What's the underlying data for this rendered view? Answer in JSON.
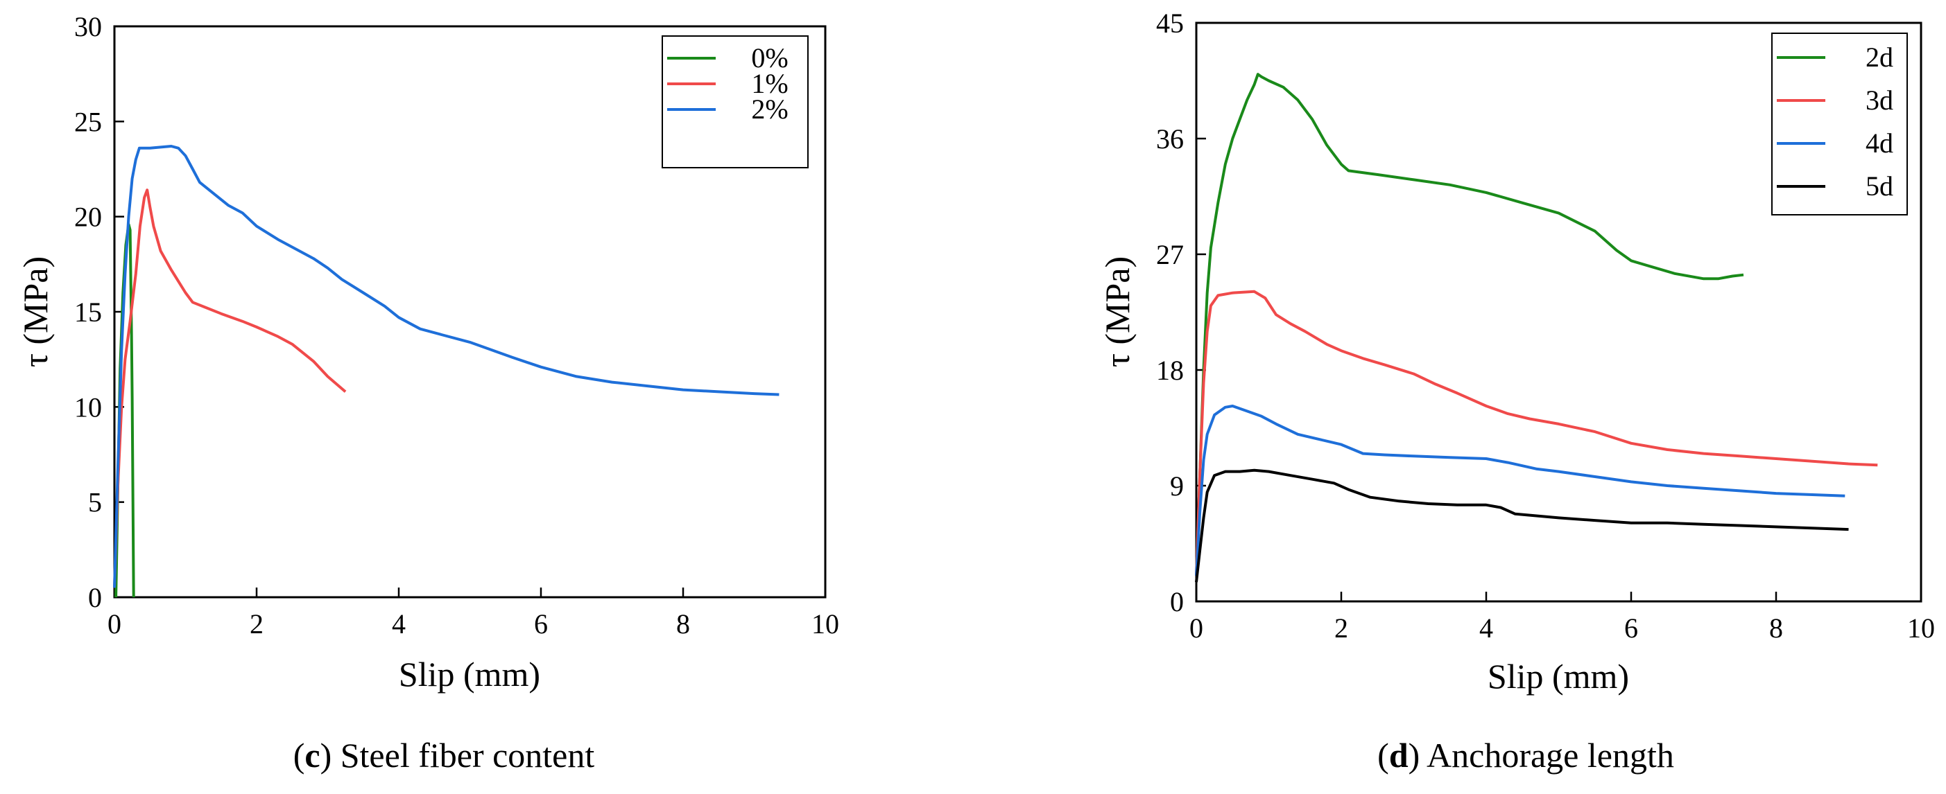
{
  "chart_data": [
    {
      "type": "line",
      "panel_letter": "c",
      "caption_text": " Steel fiber content",
      "xlabel": "Slip (mm)",
      "ylabel": "τ (MPa)",
      "xlim": [
        0,
        10
      ],
      "ylim": [
        0,
        30
      ],
      "xticks": [
        0,
        2,
        4,
        6,
        8,
        10
      ],
      "yticks": [
        0,
        5,
        10,
        15,
        20,
        25,
        30
      ],
      "legend_position": "top-right",
      "series": [
        {
          "name": "0%",
          "color": "#1a8a1a",
          "points": [
            [
              0.02,
              0
            ],
            [
              0.05,
              6
            ],
            [
              0.08,
              12
            ],
            [
              0.12,
              16
            ],
            [
              0.16,
              18.5
            ],
            [
              0.2,
              19.6
            ],
            [
              0.22,
              19.3
            ],
            [
              0.24,
              14
            ],
            [
              0.25,
              10.5
            ],
            [
              0.26,
              5
            ],
            [
              0.27,
              0
            ]
          ]
        },
        {
          "name": "1%",
          "color": "#f04a4a",
          "points": [
            [
              0.0,
              0.5
            ],
            [
              0.05,
              6
            ],
            [
              0.1,
              10
            ],
            [
              0.15,
              12.5
            ],
            [
              0.22,
              14.5
            ],
            [
              0.3,
              17
            ],
            [
              0.36,
              19.5
            ],
            [
              0.42,
              21
            ],
            [
              0.46,
              21.4
            ],
            [
              0.5,
              20.5
            ],
            [
              0.55,
              19.5
            ],
            [
              0.65,
              18.2
            ],
            [
              0.8,
              17.2
            ],
            [
              1.0,
              16
            ],
            [
              1.1,
              15.5
            ],
            [
              1.3,
              15.2
            ],
            [
              1.5,
              14.9
            ],
            [
              1.8,
              14.5
            ],
            [
              2.0,
              14.2
            ],
            [
              2.3,
              13.7
            ],
            [
              2.5,
              13.3
            ],
            [
              2.8,
              12.4
            ],
            [
              3.0,
              11.6
            ],
            [
              3.25,
              10.8
            ]
          ]
        },
        {
          "name": "2%",
          "color": "#1e6fd9",
          "points": [
            [
              0.0,
              0.5
            ],
            [
              0.05,
              7
            ],
            [
              0.1,
              13
            ],
            [
              0.15,
              17
            ],
            [
              0.2,
              20
            ],
            [
              0.25,
              22
            ],
            [
              0.3,
              23
            ],
            [
              0.35,
              23.6
            ],
            [
              0.5,
              23.6
            ],
            [
              0.8,
              23.7
            ],
            [
              0.9,
              23.6
            ],
            [
              1.0,
              23.2
            ],
            [
              1.1,
              22.5
            ],
            [
              1.2,
              21.8
            ],
            [
              1.4,
              21.2
            ],
            [
              1.6,
              20.6
            ],
            [
              1.8,
              20.2
            ],
            [
              2.0,
              19.5
            ],
            [
              2.3,
              18.8
            ],
            [
              2.5,
              18.4
            ],
            [
              2.8,
              17.8
            ],
            [
              3.0,
              17.3
            ],
            [
              3.2,
              16.7
            ],
            [
              3.5,
              16.0
            ],
            [
              3.8,
              15.3
            ],
            [
              4.0,
              14.7
            ],
            [
              4.3,
              14.1
            ],
            [
              4.6,
              13.8
            ],
            [
              5.0,
              13.4
            ],
            [
              5.3,
              13.0
            ],
            [
              5.6,
              12.6
            ],
            [
              6.0,
              12.1
            ],
            [
              6.5,
              11.6
            ],
            [
              7.0,
              11.3
            ],
            [
              7.5,
              11.1
            ],
            [
              8.0,
              10.9
            ],
            [
              8.5,
              10.8
            ],
            [
              9.0,
              10.7
            ],
            [
              9.35,
              10.65
            ]
          ]
        }
      ]
    },
    {
      "type": "line",
      "panel_letter": "d",
      "caption_text": " Anchorage length",
      "xlabel": "Slip (mm)",
      "ylabel": "τ (MPa)",
      "xlim": [
        0,
        10
      ],
      "ylim": [
        0,
        45
      ],
      "xticks": [
        0,
        2,
        4,
        6,
        8,
        10
      ],
      "yticks": [
        0,
        9,
        18,
        27,
        36,
        45
      ],
      "legend_position": "top-right",
      "series": [
        {
          "name": "2d",
          "color": "#1a8a1a",
          "points": [
            [
              0.0,
              2
            ],
            [
              0.05,
              10
            ],
            [
              0.1,
              18
            ],
            [
              0.15,
              24
            ],
            [
              0.2,
              27.5
            ],
            [
              0.3,
              31
            ],
            [
              0.4,
              34
            ],
            [
              0.5,
              36
            ],
            [
              0.6,
              37.5
            ],
            [
              0.7,
              39
            ],
            [
              0.8,
              40.2
            ],
            [
              0.85,
              41
            ],
            [
              0.9,
              40.8
            ],
            [
              1.0,
              40.5
            ],
            [
              1.2,
              40.0
            ],
            [
              1.4,
              39.0
            ],
            [
              1.6,
              37.5
            ],
            [
              1.8,
              35.5
            ],
            [
              2.0,
              34
            ],
            [
              2.1,
              33.5
            ],
            [
              2.5,
              33.2
            ],
            [
              3.0,
              32.8
            ],
            [
              3.5,
              32.4
            ],
            [
              4.0,
              31.8
            ],
            [
              4.5,
              31.0
            ],
            [
              5.0,
              30.2
            ],
            [
              5.5,
              28.8
            ],
            [
              5.8,
              27.3
            ],
            [
              6.0,
              26.5
            ],
            [
              6.3,
              26.0
            ],
            [
              6.6,
              25.5
            ],
            [
              7.0,
              25.1
            ],
            [
              7.2,
              25.1
            ],
            [
              7.4,
              25.3
            ],
            [
              7.55,
              25.4
            ]
          ]
        },
        {
          "name": "3d",
          "color": "#f04a4a",
          "points": [
            [
              0.0,
              2
            ],
            [
              0.05,
              10
            ],
            [
              0.1,
              17
            ],
            [
              0.15,
              21
            ],
            [
              0.2,
              23
            ],
            [
              0.3,
              23.8
            ],
            [
              0.5,
              24.0
            ],
            [
              0.8,
              24.1
            ],
            [
              0.95,
              23.6
            ],
            [
              1.1,
              22.3
            ],
            [
              1.3,
              21.6
            ],
            [
              1.5,
              21.0
            ],
            [
              1.8,
              20.0
            ],
            [
              2.0,
              19.5
            ],
            [
              2.3,
              18.9
            ],
            [
              2.6,
              18.4
            ],
            [
              3.0,
              17.7
            ],
            [
              3.3,
              16.9
            ],
            [
              3.6,
              16.2
            ],
            [
              4.0,
              15.2
            ],
            [
              4.3,
              14.6
            ],
            [
              4.6,
              14.2
            ],
            [
              5.0,
              13.8
            ],
            [
              5.5,
              13.2
            ],
            [
              6.0,
              12.3
            ],
            [
              6.5,
              11.8
            ],
            [
              7.0,
              11.5
            ],
            [
              7.5,
              11.3
            ],
            [
              8.0,
              11.1
            ],
            [
              8.5,
              10.9
            ],
            [
              9.0,
              10.7
            ],
            [
              9.4,
              10.6
            ]
          ]
        },
        {
          "name": "4d",
          "color": "#1e6fd9",
          "points": [
            [
              0.0,
              2
            ],
            [
              0.05,
              7
            ],
            [
              0.1,
              11
            ],
            [
              0.15,
              13
            ],
            [
              0.25,
              14.5
            ],
            [
              0.4,
              15.1
            ],
            [
              0.5,
              15.2
            ],
            [
              0.7,
              14.8
            ],
            [
              0.9,
              14.4
            ],
            [
              1.1,
              13.8
            ],
            [
              1.4,
              13.0
            ],
            [
              1.7,
              12.6
            ],
            [
              2.0,
              12.2
            ],
            [
              2.3,
              11.5
            ],
            [
              2.6,
              11.4
            ],
            [
              3.0,
              11.3
            ],
            [
              3.5,
              11.2
            ],
            [
              4.0,
              11.1
            ],
            [
              4.3,
              10.8
            ],
            [
              4.7,
              10.3
            ],
            [
              5.0,
              10.1
            ],
            [
              5.5,
              9.7
            ],
            [
              6.0,
              9.3
            ],
            [
              6.5,
              9.0
            ],
            [
              7.0,
              8.8
            ],
            [
              7.5,
              8.6
            ],
            [
              8.0,
              8.4
            ],
            [
              8.5,
              8.3
            ],
            [
              8.95,
              8.2
            ]
          ]
        },
        {
          "name": "5d",
          "color": "#000000",
          "points": [
            [
              0.0,
              1.5
            ],
            [
              0.05,
              4
            ],
            [
              0.1,
              6.5
            ],
            [
              0.15,
              8.5
            ],
            [
              0.25,
              9.8
            ],
            [
              0.4,
              10.1
            ],
            [
              0.6,
              10.1
            ],
            [
              0.8,
              10.2
            ],
            [
              1.0,
              10.1
            ],
            [
              1.3,
              9.8
            ],
            [
              1.6,
              9.5
            ],
            [
              1.9,
              9.2
            ],
            [
              2.1,
              8.7
            ],
            [
              2.4,
              8.1
            ],
            [
              2.8,
              7.8
            ],
            [
              3.2,
              7.6
            ],
            [
              3.6,
              7.5
            ],
            [
              4.0,
              7.5
            ],
            [
              4.2,
              7.3
            ],
            [
              4.4,
              6.8
            ],
            [
              5.0,
              6.5
            ],
            [
              5.5,
              6.3
            ],
            [
              6.0,
              6.1
            ],
            [
              6.5,
              6.1
            ],
            [
              7.0,
              6.0
            ],
            [
              7.5,
              5.9
            ],
            [
              8.0,
              5.8
            ],
            [
              8.5,
              5.7
            ],
            [
              9.0,
              5.6
            ]
          ]
        }
      ]
    }
  ]
}
